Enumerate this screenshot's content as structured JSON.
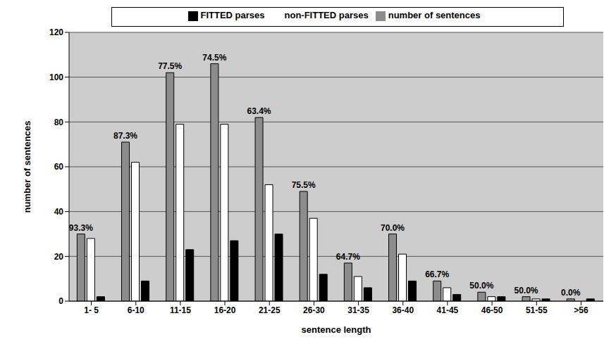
{
  "chart_data": {
    "type": "bar",
    "x_label": "sentence length",
    "y_label": "number of sentences",
    "categories": [
      "1- 5",
      "6-10",
      "11-15",
      "16-20",
      "21-25",
      "26-30",
      "31-35",
      "36-40",
      "41-45",
      "46-50",
      "51-55",
      ">56"
    ],
    "series": [
      {
        "name": "number of sentences",
        "color": "#8c8c8c",
        "values": [
          30,
          71,
          102,
          106,
          82,
          49,
          17,
          30,
          9,
          4,
          2,
          1
        ]
      },
      {
        "name": "non-FITTED parses",
        "color": "#ffffff",
        "values": [
          28,
          62,
          79,
          79,
          52,
          37,
          11,
          21,
          6,
          2,
          1,
          0
        ]
      },
      {
        "name": "FITTED parses",
        "color": "#000000",
        "values": [
          2,
          9,
          23,
          27,
          30,
          12,
          6,
          9,
          3,
          2,
          1,
          1
        ]
      }
    ],
    "percent_labels": [
      "93.3%",
      "87.3%",
      "77.5%",
      "74.5%",
      "63.4%",
      "75.5%",
      "64.7%",
      "70.0%",
      "66.7%",
      "50.0%",
      "50.0%",
      "0.0%"
    ],
    "ylim": [
      0,
      120
    ],
    "yticks": [
      0,
      20,
      40,
      60,
      80,
      100,
      120
    ],
    "grid": true,
    "legend": "top"
  }
}
